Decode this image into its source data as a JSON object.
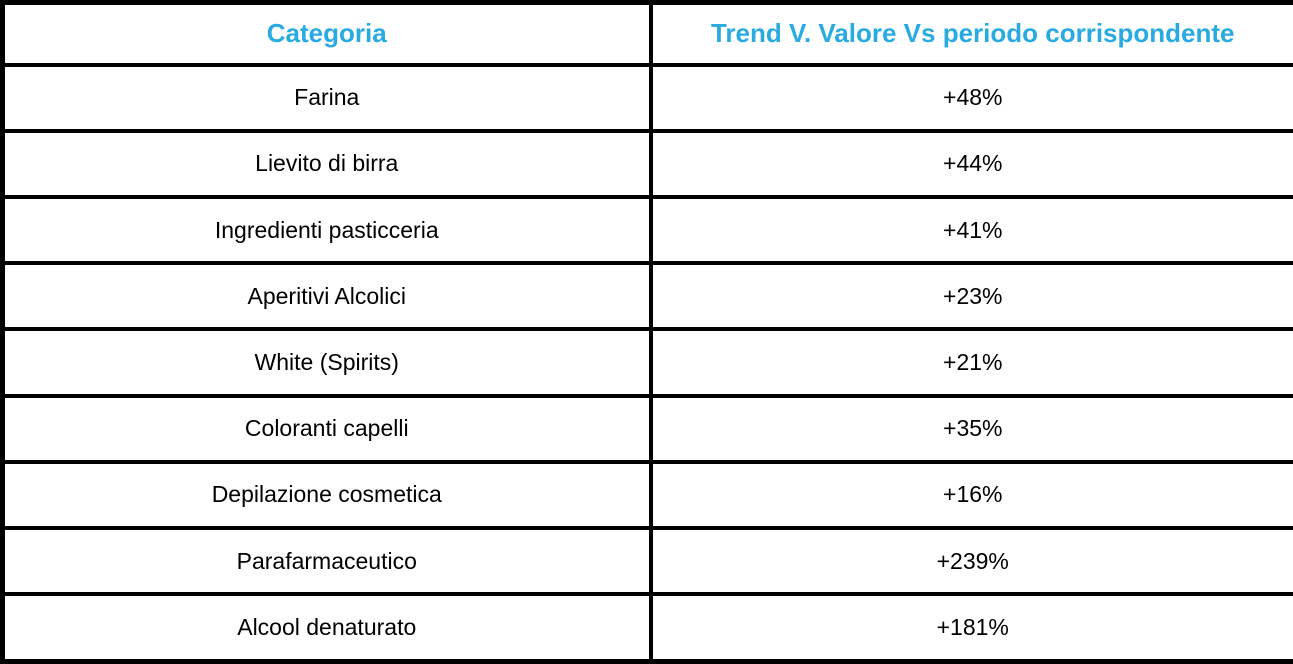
{
  "accent_color": "#29ABE2",
  "border_color": "#000000",
  "table": {
    "headers": {
      "category": "Categoria",
      "trend": "Trend V. Valore Vs periodo corrispondente"
    },
    "rows": [
      {
        "category": "Farina",
        "trend": "+48%"
      },
      {
        "category": "Lievito di birra",
        "trend": "+44%"
      },
      {
        "category": "Ingredienti pasticceria",
        "trend": "+41%"
      },
      {
        "category": "Aperitivi Alcolici",
        "trend": "+23%"
      },
      {
        "category": "White (Spirits)",
        "trend": "+21%"
      },
      {
        "category": "Coloranti capelli",
        "trend": "+35%"
      },
      {
        "category": "Depilazione cosmetica",
        "trend": "+16%"
      },
      {
        "category": "Parafarmaceutico",
        "trend": "+239%"
      },
      {
        "category": "Alcool denaturato",
        "trend": "+181%"
      }
    ]
  },
  "chart_data": {
    "type": "table",
    "title": "",
    "columns": [
      "Categoria",
      "Trend V. Valore Vs periodo corrispondente"
    ],
    "rows": [
      [
        "Farina",
        "+48%"
      ],
      [
        "Lievito di birra",
        "+44%"
      ],
      [
        "Ingredienti pasticceria",
        "+41%"
      ],
      [
        "Aperitivi Alcolici",
        "+23%"
      ],
      [
        "White (Spirits)",
        "+21%"
      ],
      [
        "Coloranti capelli",
        "+35%"
      ],
      [
        "Depilazione cosmetica",
        "+16%"
      ],
      [
        "Parafarmaceutico",
        "+239%"
      ],
      [
        "Alcool denaturato",
        "+181%"
      ]
    ],
    "categories": [
      "Farina",
      "Lievito di birra",
      "Ingredienti pasticceria",
      "Aperitivi Alcolici",
      "White (Spirits)",
      "Coloranti capelli",
      "Depilazione cosmetica",
      "Parafarmaceutico",
      "Alcool denaturato"
    ],
    "values_percent": [
      48,
      44,
      41,
      23,
      21,
      35,
      16,
      239,
      181
    ]
  }
}
